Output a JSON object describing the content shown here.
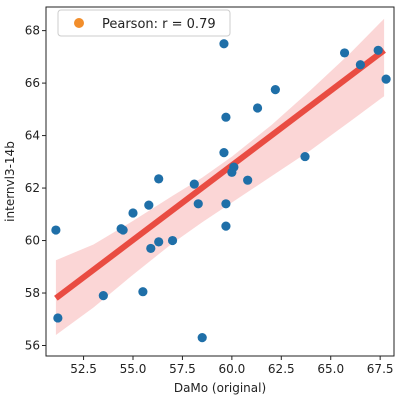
{
  "chart_data": {
    "type": "scatter",
    "xlabel": "DaMo (original)",
    "ylabel": "internvl3-14b",
    "xlim": [
      50.6,
      68.2
    ],
    "ylim": [
      55.6,
      68.9
    ],
    "xticks": [
      52.5,
      55.0,
      57.5,
      60.0,
      62.5,
      65.0,
      67.5
    ],
    "xtick_labels": [
      "52.5",
      "55.0",
      "57.5",
      "60.0",
      "62.5",
      "65.0",
      "67.5"
    ],
    "yticks": [
      56,
      58,
      60,
      62,
      64,
      66,
      68
    ],
    "ytick_labels": [
      "56",
      "58",
      "60",
      "62",
      "64",
      "66",
      "68"
    ],
    "grid": false,
    "legend": {
      "position": "top-left",
      "entries": [
        {
          "label": "Pearson: r = 0.79",
          "color": "#f28e2b"
        }
      ]
    },
    "points_color": "#1f6fa8",
    "fit_color": "#e8443a",
    "band_color": "#f7b5b5",
    "regression": {
      "x_start": 51.1,
      "y_start": 57.8,
      "x_end": 67.7,
      "y_end": 67.25
    },
    "confidence_band": {
      "x": [
        51.1,
        53.0,
        55.0,
        57.0,
        58.5,
        60.0,
        62.0,
        64.0,
        66.0,
        67.7
      ],
      "upper": [
        59.25,
        59.85,
        60.75,
        61.7,
        62.4,
        63.2,
        64.4,
        65.75,
        67.15,
        68.45
      ],
      "lower": [
        56.4,
        57.45,
        58.7,
        59.9,
        60.7,
        61.45,
        62.45,
        63.45,
        64.55,
        65.5
      ]
    },
    "points": [
      {
        "x": 51.1,
        "y": 60.4
      },
      {
        "x": 51.2,
        "y": 57.05
      },
      {
        "x": 53.5,
        "y": 57.9
      },
      {
        "x": 54.4,
        "y": 60.45
      },
      {
        "x": 54.5,
        "y": 60.4
      },
      {
        "x": 55.0,
        "y": 61.05
      },
      {
        "x": 55.5,
        "y": 58.05
      },
      {
        "x": 55.8,
        "y": 61.35
      },
      {
        "x": 55.9,
        "y": 59.7
      },
      {
        "x": 56.3,
        "y": 62.35
      },
      {
        "x": 56.3,
        "y": 59.95
      },
      {
        "x": 57.0,
        "y": 60.0
      },
      {
        "x": 58.1,
        "y": 62.15
      },
      {
        "x": 58.3,
        "y": 61.4
      },
      {
        "x": 58.5,
        "y": 56.3
      },
      {
        "x": 59.6,
        "y": 63.35
      },
      {
        "x": 59.6,
        "y": 67.5
      },
      {
        "x": 59.7,
        "y": 64.7
      },
      {
        "x": 59.7,
        "y": 61.4
      },
      {
        "x": 59.7,
        "y": 60.55
      },
      {
        "x": 60.0,
        "y": 62.6
      },
      {
        "x": 60.1,
        "y": 62.8
      },
      {
        "x": 60.8,
        "y": 62.3
      },
      {
        "x": 61.3,
        "y": 65.05
      },
      {
        "x": 62.2,
        "y": 65.75
      },
      {
        "x": 63.7,
        "y": 63.2
      },
      {
        "x": 65.7,
        "y": 67.15
      },
      {
        "x": 66.5,
        "y": 66.7
      },
      {
        "x": 67.4,
        "y": 67.25
      },
      {
        "x": 67.8,
        "y": 66.15
      }
    ]
  }
}
